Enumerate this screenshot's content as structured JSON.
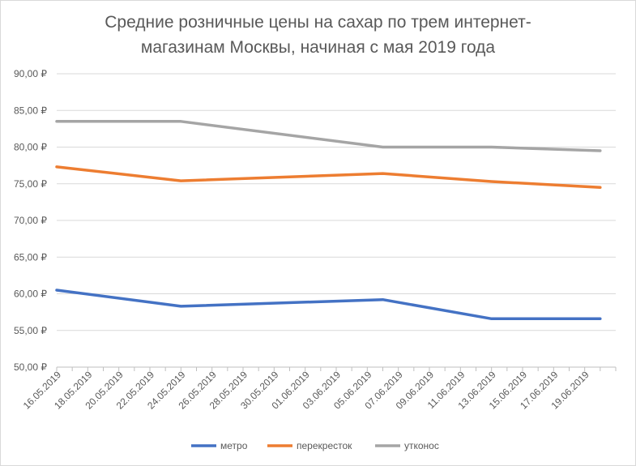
{
  "chart_data": {
    "type": "line",
    "title_lines": [
      "Средние розничные цены на сахар по трем интернет-",
      "магазинам Москвы, начиная с мая 2019 года"
    ],
    "x_tick_labels": [
      "16.05.2019",
      "18.05.2019",
      "20.05.2019",
      "22.05.2019",
      "24.05.2019",
      "26.05.2019",
      "28.05.2019",
      "30.05.2019",
      "01.06.2019",
      "03.06.2019",
      "05.06.2019",
      "07.06.2019",
      "09.06.2019",
      "11.06.2019",
      "13.06.2019",
      "15.06.2019",
      "17.06.2019",
      "19.06.2019"
    ],
    "x_range": [
      "16.05.2019",
      "21.06.2019"
    ],
    "y_ticks": [
      50,
      55,
      60,
      65,
      70,
      75,
      80,
      85,
      90
    ],
    "y_tick_labels": [
      "50,00 ₽",
      "55,00 ₽",
      "60,00 ₽",
      "65,00 ₽",
      "70,00 ₽",
      "75,00 ₽",
      "80,00 ₽",
      "85,00 ₽",
      "90,00 ₽"
    ],
    "ylim": [
      50,
      90
    ],
    "grid": "horizontal",
    "legend_position": "bottom",
    "series": [
      {
        "name": "метро",
        "color": "#4472c4",
        "points": [
          {
            "x": "16.05.2019",
            "y": 60.5
          },
          {
            "x": "24.05.2019",
            "y": 58.3
          },
          {
            "x": "06.06.2019",
            "y": 59.2
          },
          {
            "x": "13.06.2019",
            "y": 56.6
          },
          {
            "x": "20.06.2019",
            "y": 56.6
          }
        ]
      },
      {
        "name": "перекресток",
        "color": "#ed7d31",
        "points": [
          {
            "x": "16.05.2019",
            "y": 77.3
          },
          {
            "x": "24.05.2019",
            "y": 75.4
          },
          {
            "x": "06.06.2019",
            "y": 76.4
          },
          {
            "x": "13.06.2019",
            "y": 75.3
          },
          {
            "x": "20.06.2019",
            "y": 74.5
          }
        ]
      },
      {
        "name": "утконос",
        "color": "#a5a5a5",
        "points": [
          {
            "x": "16.05.2019",
            "y": 83.5
          },
          {
            "x": "24.05.2019",
            "y": 83.5
          },
          {
            "x": "06.06.2019",
            "y": 80.0
          },
          {
            "x": "13.06.2019",
            "y": 80.0
          },
          {
            "x": "20.06.2019",
            "y": 79.5
          }
        ]
      }
    ]
  }
}
